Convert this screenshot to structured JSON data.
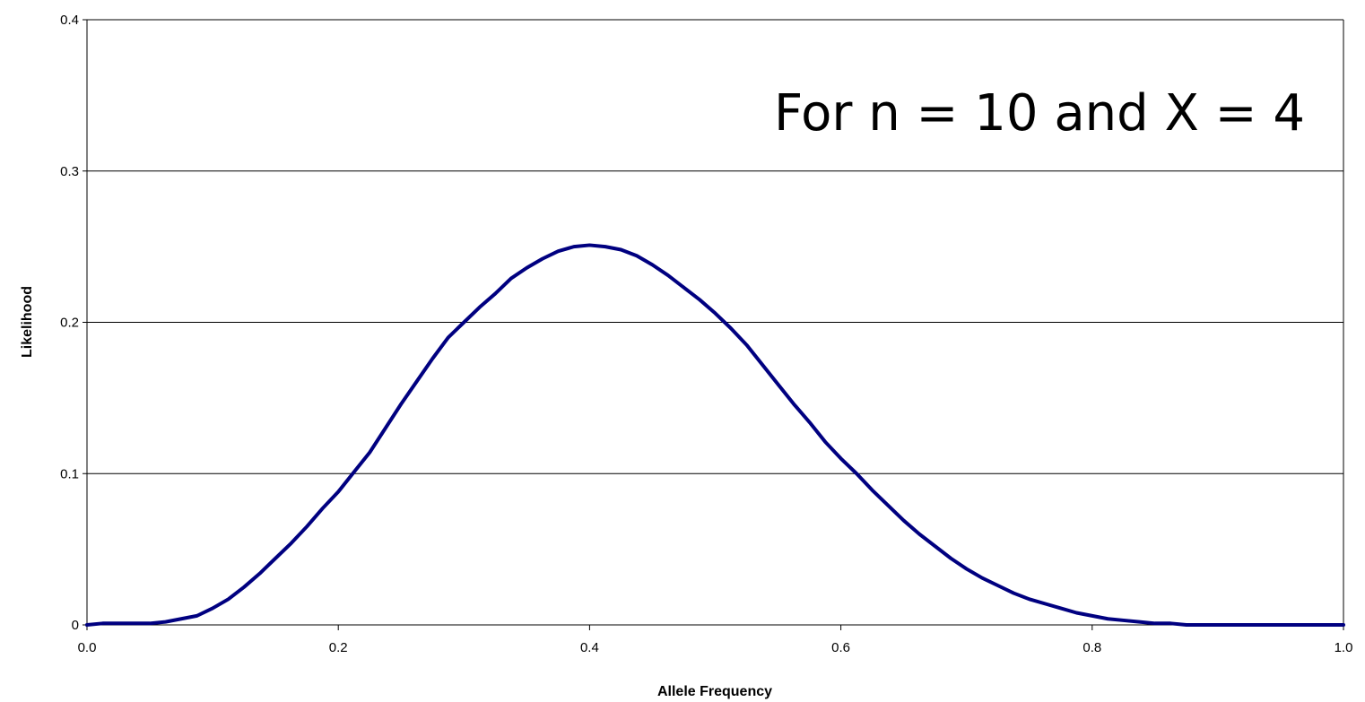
{
  "chart_data": {
    "type": "line",
    "xlabel": "Allele Frequency",
    "ylabel": "Likelihood",
    "annotation": "For n = 10 and X = 4",
    "xlim": [
      0.0,
      1.0
    ],
    "ylim": [
      0,
      0.4
    ],
    "x_ticks": [
      "0.0",
      "0.2",
      "0.4",
      "0.6",
      "0.8",
      "1.0"
    ],
    "y_ticks": [
      "0",
      "0.1",
      "0.2",
      "0.3",
      "0.4"
    ],
    "grid": "horizontal",
    "line_color": "#000080",
    "series": [
      {
        "x": [
          0.0,
          0.0125,
          0.025,
          0.0375,
          0.05,
          0.0625,
          0.075,
          0.0875,
          0.1,
          0.1125,
          0.125,
          0.1375,
          0.15,
          0.1625,
          0.175,
          0.1875,
          0.2,
          0.2125,
          0.225,
          0.2375,
          0.25,
          0.2625,
          0.275,
          0.2875,
          0.3,
          0.3125,
          0.325,
          0.3375,
          0.35,
          0.3625,
          0.375,
          0.3875,
          0.4,
          0.4125,
          0.425,
          0.4375,
          0.45,
          0.4625,
          0.475,
          0.4875,
          0.5,
          0.5125,
          0.525,
          0.5375,
          0.55,
          0.5625,
          0.575,
          0.5875,
          0.6,
          0.6125,
          0.625,
          0.6375,
          0.65,
          0.6625,
          0.675,
          0.6875,
          0.7,
          0.7125,
          0.725,
          0.7375,
          0.75,
          0.7625,
          0.775,
          0.7875,
          0.8,
          0.8125,
          0.825,
          0.8375,
          0.85,
          0.8625,
          0.875,
          0.8875,
          0.9,
          0.9125,
          0.925,
          0.9375,
          0.95,
          0.9625,
          0.975,
          0.9875,
          1.0
        ],
        "values": [
          0.0,
          0.001,
          0.001,
          0.001,
          0.001,
          0.002,
          0.004,
          0.006,
          0.011,
          0.017,
          0.025,
          0.034,
          0.044,
          0.054,
          0.065,
          0.077,
          0.088,
          0.101,
          0.114,
          0.13,
          0.146,
          0.161,
          0.176,
          0.19,
          0.2,
          0.21,
          0.219,
          0.229,
          0.236,
          0.242,
          0.247,
          0.25,
          0.251,
          0.25,
          0.248,
          0.244,
          0.238,
          0.231,
          0.223,
          0.215,
          0.206,
          0.196,
          0.185,
          0.172,
          0.159,
          0.146,
          0.134,
          0.121,
          0.11,
          0.1,
          0.089,
          0.079,
          0.069,
          0.06,
          0.052,
          0.044,
          0.037,
          0.031,
          0.026,
          0.021,
          0.017,
          0.014,
          0.011,
          0.008,
          0.006,
          0.004,
          0.003,
          0.002,
          0.001,
          0.001,
          0.0,
          0.0,
          0.0,
          0.0,
          0.0,
          0.0,
          0.0,
          0.0,
          0.0,
          0.0,
          0.0
        ]
      }
    ]
  }
}
